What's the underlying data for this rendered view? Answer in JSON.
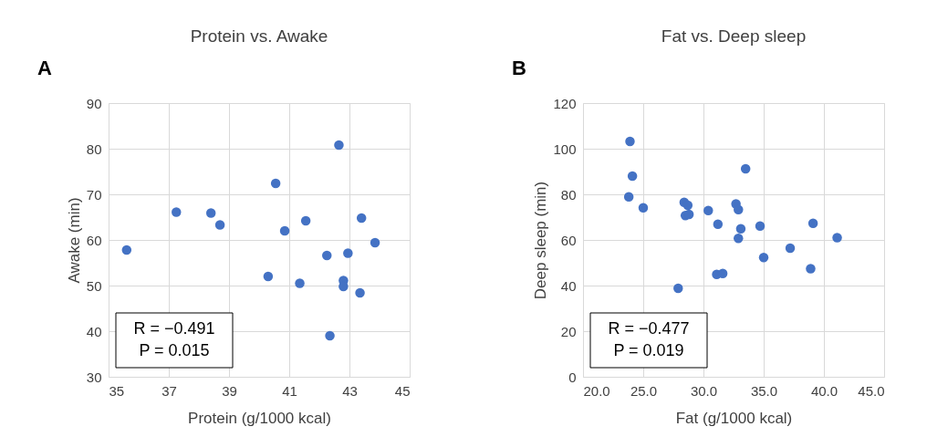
{
  "chart_data": [
    {
      "type": "scatter",
      "title": "Protein vs. Awake",
      "xlabel": "Protein (g/1000 kcal)",
      "ylabel": "Awake (min)",
      "annotations": [
        "A",
        "R = −0.491",
        "P = 0.015"
      ],
      "series": [
        {
          "color": "#4472c4",
          "x": [
            35.6,
            37.25,
            38.4,
            38.7,
            40.3,
            40.55,
            40.85,
            41.35,
            41.55,
            42.25,
            42.35,
            42.65,
            42.8,
            42.8,
            42.95,
            43.35,
            43.4,
            43.85
          ],
          "values": [
            57.8,
            66.1,
            65.9,
            63.3,
            52.0,
            72.4,
            62.0,
            50.5,
            64.2,
            56.6,
            39.0,
            80.8,
            51.1,
            49.8,
            57.1,
            48.4,
            64.8,
            59.4
          ]
        }
      ],
      "xlim": [
        35,
        45
      ],
      "xticks": [
        35,
        37,
        39,
        41,
        43,
        45
      ],
      "ylim": [
        30,
        90
      ],
      "yticks": [
        30,
        40,
        50,
        60,
        70,
        80,
        90
      ],
      "grid": true,
      "marker": "circle"
    },
    {
      "type": "scatter",
      "title": "Fat vs. Deep sleep",
      "xlabel": "Fat (g/1000 kcal)",
      "ylabel": "Deep sleep (min)",
      "annotations": [
        "B",
        "R = −0.477",
        "P = 0.019"
      ],
      "series": [
        {
          "color": "#4472c4",
          "x": [
            23.9,
            24.1,
            23.8,
            25.0,
            28.4,
            28.7,
            28.5,
            28.8,
            30.4,
            31.2,
            32.7,
            32.9,
            33.1,
            32.9,
            33.5,
            34.7,
            35.0,
            37.2,
            39.1,
            38.9,
            41.1,
            31.1,
            31.6,
            27.9
          ],
          "values": [
            103.2,
            88.0,
            78.9,
            74.1,
            76.5,
            75.2,
            70.7,
            71.2,
            72.9,
            66.9,
            75.8,
            73.3,
            64.9,
            60.7,
            91.2,
            66.1,
            52.3,
            56.4,
            67.3,
            47.4,
            61.0,
            44.9,
            45.3,
            38.8
          ]
        }
      ],
      "xlim": [
        20,
        45
      ],
      "xticks": [
        {
          "value": 20,
          "label": "20.0"
        },
        {
          "value": 25,
          "label": "25.0"
        },
        {
          "value": 30,
          "label": "30.0"
        },
        {
          "value": 35,
          "label": "35.0"
        },
        {
          "value": 40,
          "label": "40.0"
        },
        {
          "value": 45,
          "label": "45.0"
        }
      ],
      "ylim": [
        0,
        120
      ],
      "yticks": [
        0,
        20,
        40,
        60,
        80,
        100,
        120
      ],
      "grid": true,
      "marker": "circle"
    }
  ]
}
